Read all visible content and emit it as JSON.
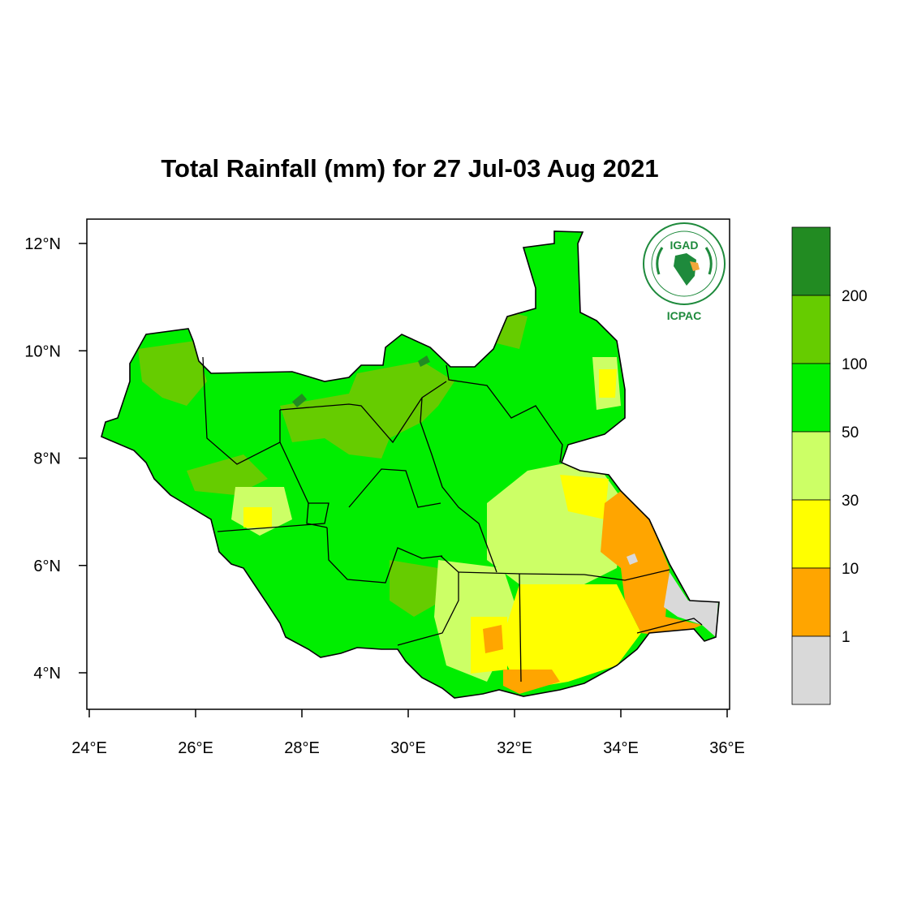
{
  "title": "Total Rainfall (mm) for 27 Jul-03 Aug 2021",
  "map": {
    "lon_range": [
      24,
      36
    ],
    "lat_range": [
      3.4,
      12.45
    ],
    "x_ticks": [
      "24°E",
      "26°E",
      "28°E",
      "30°E",
      "32°E",
      "34°E",
      "36°E"
    ],
    "x_tick_values": [
      24,
      26,
      28,
      30,
      32,
      34,
      36
    ],
    "y_ticks": [
      "12°N",
      "10°N",
      "8°N",
      "6°N",
      "4°N"
    ],
    "y_tick_values": [
      12,
      10,
      8,
      6,
      4
    ]
  },
  "legend": {
    "labels": [
      "200",
      "100",
      "50",
      "30",
      "10",
      "1"
    ],
    "colors": [
      "#228b22",
      "#66cc00",
      "#00ee00",
      "#ccff66",
      "#ffff00",
      "#ffa500",
      "#d9d9d9"
    ]
  },
  "logo": {
    "name": "IGAD",
    "subtitle": "ICPAC",
    "ring_text": "INTERGOVERNMENTAL AUTHORITY ON DEVELOPMENT",
    "ring_text_fr": "AUTORITE INTERGOUVERNEMENTALE POUR LE DEVELOPPEMENT"
  }
}
